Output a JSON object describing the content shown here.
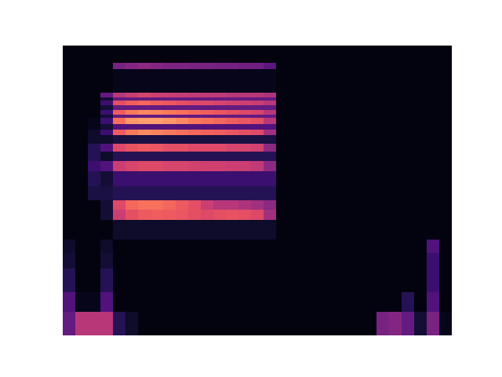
{
  "chart_data": {
    "type": "heatmap",
    "tick_labels": false,
    "xlim": [
      0,
      31
    ],
    "ylim": [
      0,
      369
    ],
    "value_range": [
      0,
      100
    ],
    "y_edges": [
      0,
      30,
      55,
      85,
      105,
      122,
      147,
      160,
      172,
      190,
      209,
      222,
      234,
      244,
      255,
      262,
      269,
      277,
      281,
      287,
      293,
      299,
      303,
      309,
      339,
      347,
      369
    ],
    "cells": [
      [
        30,
        50,
        50,
        50,
        15,
        8,
        3,
        3,
        3,
        3,
        3,
        3,
        3,
        3,
        3,
        3,
        3,
        3,
        3,
        3,
        3,
        3,
        3,
        3,
        3,
        35,
        38,
        30,
        10,
        35,
        5
      ],
      [
        25,
        5,
        5,
        25,
        3,
        3,
        3,
        3,
        3,
        3,
        3,
        3,
        3,
        3,
        3,
        3,
        3,
        3,
        3,
        3,
        3,
        3,
        3,
        3,
        3,
        3,
        3,
        15,
        3,
        25,
        3
      ],
      [
        15,
        3,
        3,
        15,
        3,
        3,
        3,
        3,
        3,
        3,
        3,
        3,
        3,
        3,
        3,
        3,
        3,
        3,
        3,
        3,
        3,
        3,
        3,
        3,
        3,
        3,
        3,
        3,
        3,
        20,
        3
      ],
      [
        10,
        3,
        3,
        10,
        3,
        3,
        3,
        3,
        3,
        3,
        3,
        3,
        3,
        3,
        3,
        3,
        3,
        3,
        3,
        3,
        3,
        3,
        3,
        3,
        3,
        3,
        3,
        3,
        3,
        20,
        3
      ],
      [
        8,
        3,
        3,
        8,
        3,
        3,
        3,
        3,
        3,
        3,
        3,
        3,
        3,
        3,
        3,
        3,
        3,
        3,
        3,
        3,
        3,
        3,
        3,
        3,
        3,
        3,
        3,
        3,
        3,
        25,
        3
      ],
      [
        3,
        3,
        3,
        3,
        8,
        8,
        8,
        8,
        8,
        8,
        8,
        8,
        8,
        8,
        8,
        8,
        8,
        3,
        3,
        3,
        3,
        3,
        3,
        3,
        3,
        3,
        3,
        3,
        3,
        3,
        3
      ],
      [
        3,
        3,
        3,
        10,
        55,
        62,
        65,
        66,
        65,
        64,
        62,
        60,
        62,
        63,
        62,
        60,
        45,
        3,
        3,
        3,
        3,
        3,
        3,
        3,
        3,
        3,
        3,
        3,
        3,
        3,
        3
      ],
      [
        3,
        3,
        3,
        10,
        60,
        68,
        70,
        70,
        68,
        65,
        62,
        55,
        50,
        50,
        48,
        45,
        40,
        3,
        3,
        3,
        3,
        3,
        3,
        3,
        3,
        3,
        3,
        3,
        3,
        3,
        3
      ],
      [
        3,
        3,
        12,
        12,
        15,
        15,
        15,
        15,
        15,
        15,
        15,
        15,
        15,
        15,
        15,
        15,
        15,
        3,
        3,
        3,
        3,
        3,
        3,
        3,
        3,
        3,
        3,
        3,
        3,
        3,
        3
      ],
      [
        3,
        3,
        15,
        10,
        20,
        20,
        20,
        20,
        20,
        20,
        20,
        20,
        20,
        20,
        20,
        20,
        20,
        3,
        3,
        3,
        3,
        3,
        3,
        3,
        3,
        3,
        3,
        3,
        3,
        3,
        3
      ],
      [
        3,
        3,
        20,
        25,
        55,
        58,
        60,
        60,
        58,
        58,
        57,
        56,
        56,
        55,
        55,
        52,
        40,
        3,
        3,
        3,
        3,
        3,
        3,
        3,
        3,
        3,
        3,
        3,
        3,
        3,
        3
      ],
      [
        3,
        3,
        15,
        8,
        15,
        15,
        15,
        15,
        15,
        15,
        15,
        15,
        15,
        15,
        15,
        15,
        15,
        3,
        3,
        3,
        3,
        3,
        3,
        3,
        3,
        3,
        3,
        3,
        3,
        3,
        3
      ],
      [
        3,
        3,
        15,
        25,
        60,
        63,
        65,
        64,
        62,
        62,
        60,
        60,
        60,
        58,
        58,
        57,
        40,
        3,
        3,
        3,
        3,
        3,
        3,
        3,
        3,
        3,
        3,
        3,
        3,
        3,
        3
      ],
      [
        3,
        3,
        8,
        8,
        12,
        12,
        12,
        12,
        12,
        12,
        12,
        12,
        12,
        12,
        12,
        12,
        12,
        3,
        3,
        3,
        3,
        3,
        3,
        3,
        3,
        3,
        3,
        3,
        3,
        3,
        3
      ],
      [
        3,
        3,
        8,
        20,
        65,
        72,
        75,
        74,
        72,
        70,
        68,
        67,
        66,
        64,
        62,
        60,
        45,
        3,
        3,
        3,
        3,
        3,
        3,
        3,
        3,
        3,
        3,
        3,
        3,
        3,
        3
      ],
      [
        3,
        3,
        5,
        10,
        25,
        25,
        25,
        25,
        25,
        25,
        25,
        25,
        25,
        25,
        25,
        25,
        25,
        3,
        3,
        3,
        3,
        3,
        3,
        3,
        3,
        3,
        3,
        3,
        3,
        3,
        3
      ],
      [
        3,
        3,
        5,
        20,
        70,
        78,
        80,
        80,
        78,
        75,
        72,
        70,
        68,
        66,
        64,
        62,
        50,
        3,
        3,
        3,
        3,
        3,
        3,
        3,
        3,
        3,
        3,
        3,
        3,
        3,
        3
      ],
      [
        3,
        3,
        3,
        10,
        30,
        30,
        30,
        30,
        30,
        30,
        30,
        30,
        30,
        30,
        30,
        30,
        30,
        3,
        3,
        3,
        3,
        3,
        3,
        3,
        3,
        3,
        3,
        3,
        3,
        3,
        3
      ],
      [
        3,
        3,
        3,
        20,
        66,
        72,
        75,
        74,
        72,
        70,
        68,
        66,
        64,
        62,
        60,
        58,
        50,
        3,
        3,
        3,
        3,
        3,
        3,
        3,
        3,
        3,
        3,
        3,
        3,
        3,
        3
      ],
      [
        3,
        3,
        3,
        10,
        30,
        30,
        30,
        30,
        30,
        30,
        30,
        30,
        30,
        30,
        30,
        30,
        30,
        3,
        3,
        3,
        3,
        3,
        3,
        3,
        3,
        3,
        3,
        3,
        3,
        3,
        3
      ],
      [
        3,
        3,
        3,
        20,
        62,
        66,
        68,
        66,
        64,
        62,
        60,
        60,
        58,
        57,
        56,
        55,
        50,
        3,
        3,
        3,
        3,
        3,
        3,
        3,
        3,
        3,
        3,
        3,
        3,
        3,
        3
      ],
      [
        3,
        3,
        3,
        10,
        30,
        30,
        30,
        30,
        30,
        30,
        30,
        30,
        30,
        30,
        30,
        30,
        30,
        3,
        3,
        3,
        3,
        3,
        3,
        3,
        3,
        3,
        3,
        3,
        3,
        3,
        3
      ],
      [
        3,
        3,
        3,
        30,
        50,
        55,
        58,
        56,
        55,
        54,
        53,
        52,
        52,
        50,
        50,
        50,
        48,
        3,
        3,
        3,
        3,
        3,
        3,
        3,
        3,
        3,
        3,
        3,
        3,
        3,
        3
      ],
      [
        3,
        3,
        3,
        3,
        5,
        5,
        5,
        5,
        5,
        5,
        5,
        5,
        5,
        5,
        5,
        5,
        5,
        3,
        3,
        3,
        3,
        3,
        3,
        3,
        3,
        3,
        3,
        3,
        3,
        3,
        3
      ],
      [
        3,
        3,
        3,
        3,
        35,
        38,
        40,
        38,
        36,
        36,
        35,
        35,
        34,
        34,
        33,
        33,
        28,
        3,
        3,
        3,
        3,
        3,
        3,
        3,
        3,
        3,
        3,
        3,
        3,
        3,
        3
      ],
      [
        3,
        3,
        3,
        3,
        3,
        3,
        3,
        3,
        3,
        3,
        3,
        3,
        3,
        3,
        3,
        3,
        3,
        3,
        3,
        3,
        3,
        3,
        3,
        3,
        3,
        3,
        3,
        3,
        3,
        3,
        3
      ]
    ]
  }
}
